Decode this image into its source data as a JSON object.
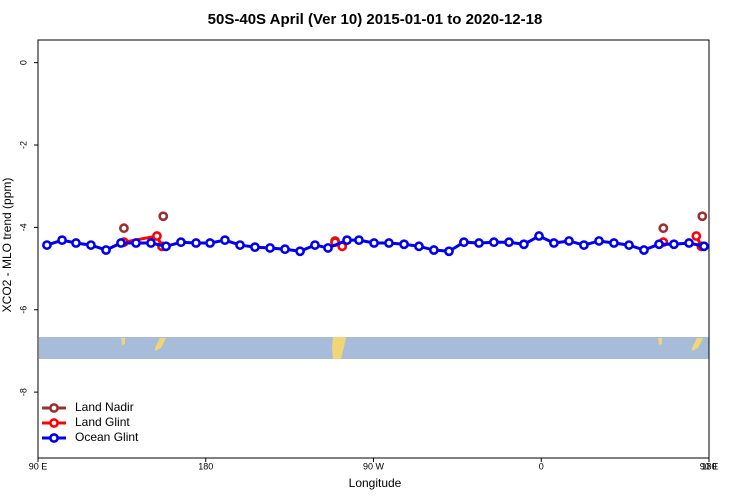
{
  "chart_data": {
    "type": "line",
    "title": "50S-40S April (Ver 10)   2015-01-01 to 2020-12-18",
    "x_label": "Longitude",
    "y_label": "XCO2 - MLO trend (ppm)",
    "xlim": [
      90,
      450
    ],
    "xticks": [
      {
        "value": 90,
        "label": "90 E"
      },
      {
        "value": 180,
        "label": "180"
      },
      {
        "value": 270,
        "label": "90 W"
      },
      {
        "value": 360,
        "label": "0"
      },
      {
        "value": 450,
        "label": "90 E"
      },
      {
        "value": 540,
        "label": "180"
      }
    ],
    "ylim": [
      -9.6,
      0.55
    ],
    "yticks": [
      0,
      -2,
      -4,
      -6,
      -8
    ],
    "legend": "bottom-left",
    "series": [
      {
        "name": "Land Nadir",
        "color": "#993333",
        "x": [
          136.1,
          null,
          157.2,
          null,
          249.4,
          null,
          425.5,
          null,
          446.4
        ],
        "values": [
          -4.02,
          null,
          -3.73,
          null,
          -4.33,
          null,
          -4.02,
          null,
          -3.73
        ]
      },
      {
        "name": "Land Glint",
        "color": "#ff0000",
        "x": [
          136.1,
          153.8,
          156.5,
          null,
          249.4,
          253.2,
          null,
          425.5,
          null,
          443.2,
          445.9
        ],
        "values": [
          -4.36,
          -4.21,
          -4.46,
          null,
          -4.36,
          -4.46,
          null,
          -4.36,
          null,
          -4.21,
          -4.46
        ]
      },
      {
        "name": "Ocean Glint",
        "color": "#0000ee",
        "x": [
          94.8,
          102.9,
          110.4,
          118.4,
          126.5,
          134.5,
          142.6,
          150.6,
          158.7,
          166.7,
          174.8,
          182.3,
          190.3,
          198.4,
          206.4,
          214.5,
          222.5,
          230.6,
          238.6,
          245.6,
          255.8,
          262.2,
          270.3,
          278.3,
          286.4,
          294.4,
          302.4,
          310.5,
          318.5,
          326.6,
          334.6,
          342.7,
          350.7,
          358.8,
          366.8,
          374.9,
          382.9,
          391.0,
          399.0,
          407.1,
          415.1,
          423.2,
          431.2,
          439.3,
          447.3
        ],
        "values": [
          -4.43,
          -4.31,
          -4.38,
          -4.43,
          -4.55,
          -4.38,
          -4.38,
          -4.38,
          -4.46,
          -4.36,
          -4.38,
          -4.38,
          -4.31,
          -4.43,
          -4.48,
          -4.5,
          -4.53,
          -4.58,
          -4.43,
          -4.5,
          -4.31,
          -4.31,
          -4.38,
          -4.38,
          -4.41,
          -4.46,
          -4.55,
          -4.58,
          -4.36,
          -4.38,
          -4.36,
          -4.36,
          -4.41,
          -4.21,
          -4.38,
          -4.33,
          -4.43,
          -4.33,
          -4.38,
          -4.43,
          -4.55,
          -4.41,
          -4.41,
          -4.38,
          -4.46
        ]
      }
    ]
  }
}
